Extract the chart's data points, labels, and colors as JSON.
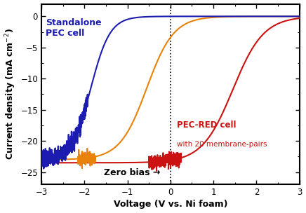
{
  "xlabel_full": "Voltage (V vs. Ni foam)",
  "ylabel_full": "Current density (mA cm$^{-2}$)",
  "xlim": [
    -3,
    3
  ],
  "ylim": [
    -27,
    2
  ],
  "yticks": [
    0,
    -5,
    -10,
    -15,
    -20,
    -25
  ],
  "xticks": [
    -3,
    -2,
    -1,
    0,
    1,
    2,
    3
  ],
  "blue_color": "#1c1cb0",
  "orange_color": "#e8820a",
  "red_color": "#cc1111",
  "background_color": "#ffffff",
  "blue_midpoint": -1.85,
  "blue_slope": 4.5,
  "blue_sat": -23.0,
  "orange_midpoint": -0.55,
  "orange_slope": 3.2,
  "orange_sat": -23.0,
  "red_midpoint": 1.45,
  "red_slope": 2.8,
  "red_sat": -23.5
}
